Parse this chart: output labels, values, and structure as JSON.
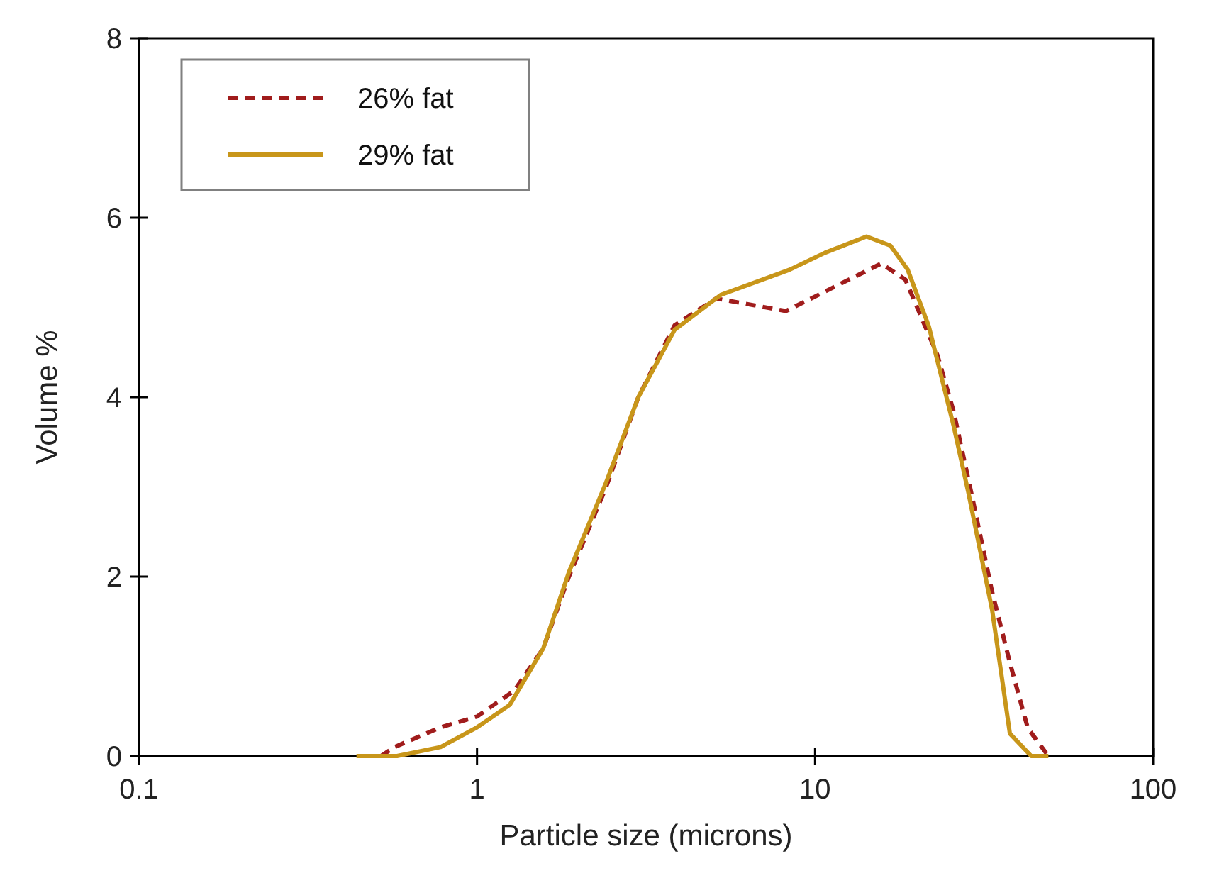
{
  "chart_data": {
    "type": "line",
    "xlabel": "Particle size (microns)",
    "ylabel": "Volume %",
    "log": "x",
    "xlim": [
      0.1,
      100
    ],
    "xticks": [
      0.1,
      1,
      10,
      100
    ],
    "ylim": [
      0,
      8
    ],
    "yticks": [
      0,
      2,
      4,
      6,
      8
    ],
    "legend": "top left",
    "grid": false,
    "series": [
      {
        "name": "26% fat",
        "color": "#a01c1c",
        "line_style": "dashed",
        "x": [
          0.52,
          0.57,
          0.78,
          1.0,
          1.29,
          1.57,
          1.87,
          2.41,
          3.0,
          3.84,
          5.1,
          8.2,
          15.7,
          18.5,
          23,
          25.7,
          29.3,
          33.4,
          37.7,
          42.6,
          49
        ],
        "values": [
          0,
          0.1,
          0.32,
          0.44,
          0.73,
          1.2,
          2,
          3,
          4,
          4.8,
          5.1,
          4.96,
          5.49,
          5.31,
          4.47,
          3.84,
          2.85,
          1.83,
          1.04,
          0.31,
          0
        ]
      },
      {
        "name": "29% fat",
        "color": "#c8961a",
        "line_style": "solid",
        "x": [
          0.44,
          0.58,
          0.78,
          1.0,
          1.25,
          1.57,
          1.87,
          2.41,
          3.0,
          3.84,
          5.26,
          8.4,
          10.7,
          14.2,
          16.7,
          18.8,
          21.7,
          25.7,
          28.4,
          33.4,
          37.7,
          43.6,
          49
        ],
        "values": [
          0,
          0,
          0.1,
          0.32,
          0.57,
          1.2,
          2.05,
          3.05,
          4,
          4.75,
          5.14,
          5.42,
          5.61,
          5.79,
          5.69,
          5.42,
          4.79,
          3.68,
          2.94,
          1.63,
          0.25,
          0,
          0
        ]
      }
    ]
  }
}
